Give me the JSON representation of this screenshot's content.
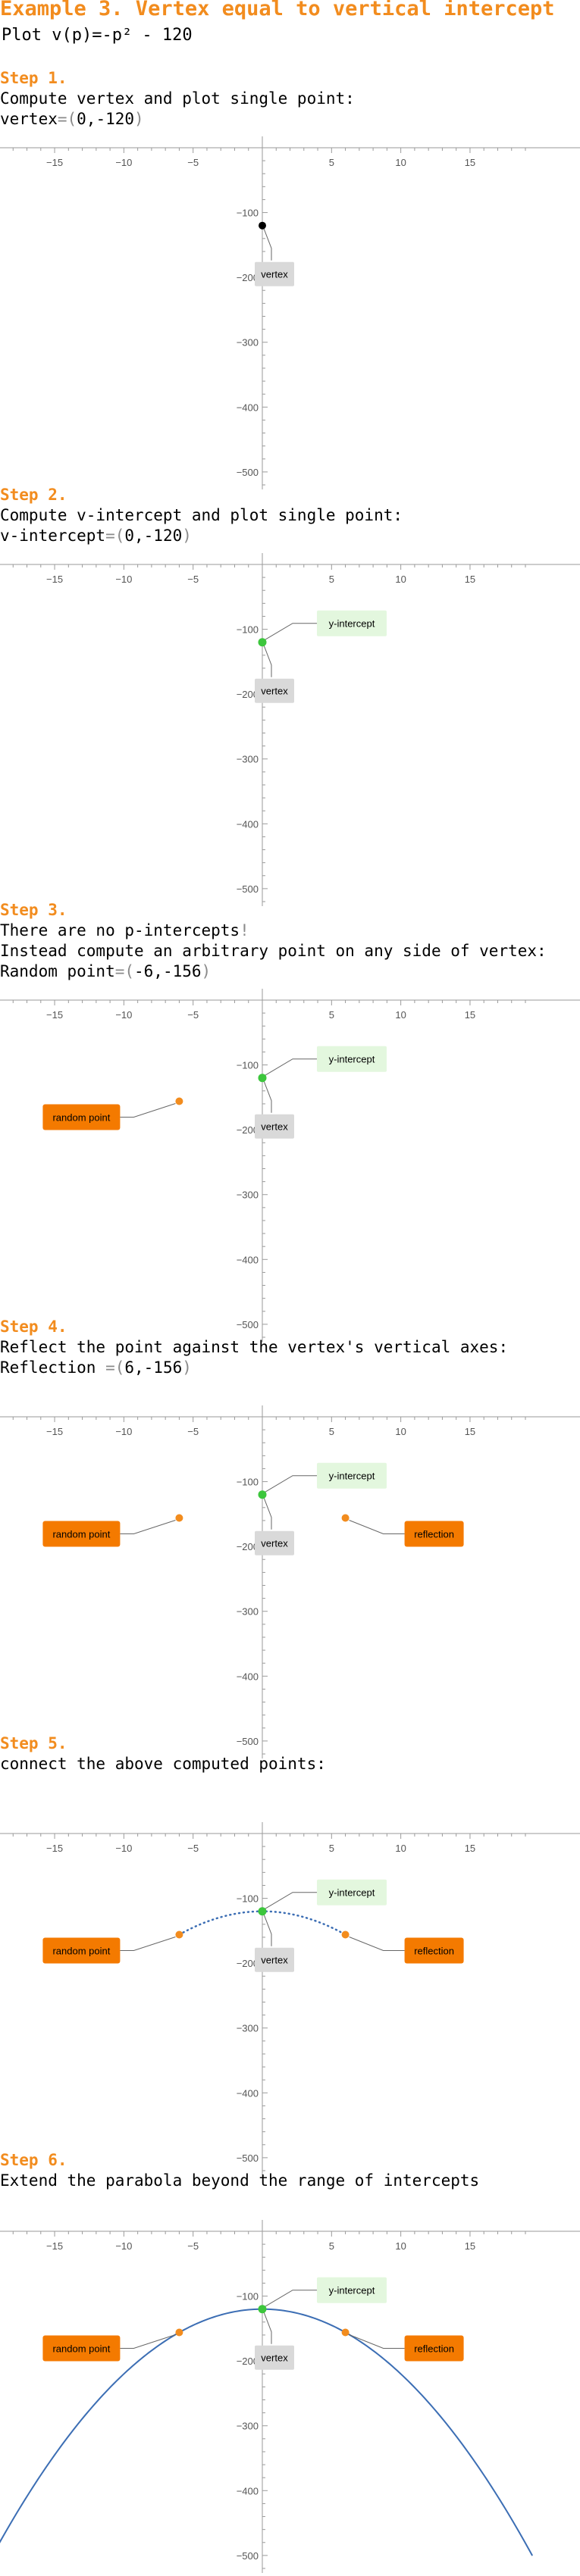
{
  "title": "Example 3. Vertex equal to vertical intercept",
  "subtitle": "Plot v(p)=-p² - 120",
  "steps": [
    {
      "heading": "Step 1.",
      "lines": [
        [
          "Compute vertex and plot single point:"
        ],
        [
          "vertex",
          "=(",
          "0,-120",
          ")"
        ]
      ]
    },
    {
      "heading": "Step 2.",
      "lines": [
        [
          "Compute v-intercept and plot single point:"
        ],
        [
          "v-intercept",
          "=(",
          "0,-120",
          ")"
        ]
      ]
    },
    {
      "heading": "Step 3.",
      "lines": [
        [
          "There are no p-intercepts",
          "!"
        ],
        [
          "Instead compute an arbitrary point on any side of vertex:"
        ],
        [
          "Random point",
          "=(",
          "-6,-156",
          ")"
        ]
      ]
    },
    {
      "heading": "Step 4.",
      "lines": [
        [
          "Reflect the point against the vertex's vertical axes:"
        ],
        [
          "Reflection ",
          "=(",
          "6,-156",
          ")"
        ]
      ]
    },
    {
      "heading": "Step 5.",
      "lines": [
        [
          "connect the above computed points:"
        ]
      ]
    },
    {
      "heading": "Step 6.",
      "lines": [
        [
          "Extend the parabola beyond the range of intercepts"
        ]
      ]
    }
  ],
  "labels": {
    "vertex": "vertex",
    "y_intercept": "y-intercept",
    "random_point": "random point",
    "reflection": "reflection"
  },
  "colors": {
    "accent": "#f28c1e",
    "vertex_point": "#000000",
    "intercept_point": "#3cc63c",
    "random_point": "#f28c1e",
    "label_gray": "#d9d9d9",
    "label_green": "#e3f7de",
    "label_orange": "#f47a00",
    "curve": "#3c6eb4"
  },
  "chart_data": [
    {
      "type": "scatter",
      "xlim": [
        -19,
        19
      ],
      "ylim": [
        -520,
        0
      ],
      "x_ticks": [
        -15,
        -10,
        -5,
        5,
        10,
        15
      ],
      "y_ticks": [
        -100,
        -200,
        -300,
        -400,
        -500
      ],
      "points": [
        {
          "x": 0,
          "y": -120,
          "label": "vertex"
        }
      ]
    },
    {
      "type": "scatter",
      "xlim": [
        -19,
        19
      ],
      "ylim": [
        -520,
        0
      ],
      "x_ticks": [
        -15,
        -10,
        -5,
        5,
        10,
        15
      ],
      "y_ticks": [
        -100,
        -200,
        -300,
        -400,
        -500
      ],
      "points": [
        {
          "x": 0,
          "y": -120,
          "label": "vertex"
        },
        {
          "x": 0,
          "y": -120,
          "label": "y-intercept"
        }
      ]
    },
    {
      "type": "scatter",
      "xlim": [
        -19,
        19
      ],
      "ylim": [
        -520,
        0
      ],
      "x_ticks": [
        -15,
        -10,
        -5,
        5,
        10,
        15
      ],
      "y_ticks": [
        -100,
        -200,
        -300,
        -400,
        -500
      ],
      "points": [
        {
          "x": 0,
          "y": -120,
          "label": "vertex"
        },
        {
          "x": 0,
          "y": -120,
          "label": "y-intercept"
        },
        {
          "x": -6,
          "y": -156,
          "label": "random point"
        }
      ]
    },
    {
      "type": "scatter",
      "xlim": [
        -19,
        19
      ],
      "ylim": [
        -520,
        0
      ],
      "x_ticks": [
        -15,
        -10,
        -5,
        5,
        10,
        15
      ],
      "y_ticks": [
        -100,
        -200,
        -300,
        -400,
        -500
      ],
      "points": [
        {
          "x": 0,
          "y": -120,
          "label": "vertex"
        },
        {
          "x": 0,
          "y": -120,
          "label": "y-intercept"
        },
        {
          "x": -6,
          "y": -156,
          "label": "random point"
        },
        {
          "x": 6,
          "y": -156,
          "label": "reflection"
        }
      ]
    },
    {
      "type": "line",
      "xlim": [
        -19,
        19
      ],
      "ylim": [
        -520,
        0
      ],
      "x_ticks": [
        -15,
        -10,
        -5,
        5,
        10,
        15
      ],
      "y_ticks": [
        -100,
        -200,
        -300,
        -400,
        -500
      ],
      "points": [
        {
          "x": 0,
          "y": -120,
          "label": "vertex"
        },
        {
          "x": 0,
          "y": -120,
          "label": "y-intercept"
        },
        {
          "x": -6,
          "y": -156,
          "label": "random point"
        },
        {
          "x": 6,
          "y": -156,
          "label": "reflection"
        }
      ],
      "curve": {
        "function": "v(p)=-p^2-120",
        "p_range": [
          -6,
          6
        ],
        "style": "dotted"
      }
    },
    {
      "type": "line",
      "xlim": [
        -19,
        19
      ],
      "ylim": [
        -520,
        0
      ],
      "x_ticks": [
        -15,
        -10,
        -5,
        5,
        10,
        15
      ],
      "y_ticks": [
        -100,
        -200,
        -300,
        -400,
        -500
      ],
      "points": [
        {
          "x": 0,
          "y": -120,
          "label": "vertex"
        },
        {
          "x": 0,
          "y": -120,
          "label": "y-intercept"
        },
        {
          "x": -6,
          "y": -156,
          "label": "random point"
        },
        {
          "x": 6,
          "y": -156,
          "label": "reflection"
        }
      ],
      "curve": {
        "function": "v(p)=-p^2-120",
        "p_range": [
          -19.5,
          19.5
        ],
        "style": "solid"
      }
    }
  ]
}
